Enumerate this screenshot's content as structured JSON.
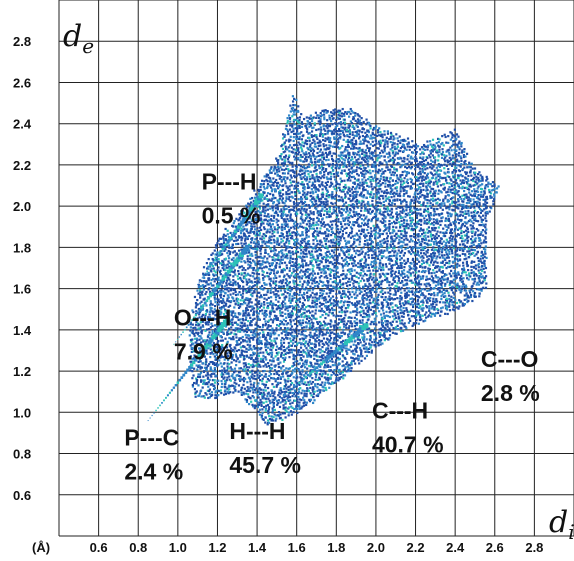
{
  "chart_data": {
    "type": "scatter",
    "title": "",
    "xlabel": "d_i",
    "ylabel": "d_e",
    "unit_label": "(Å)",
    "xlim": [
      0.4,
      3.0
    ],
    "ylim": [
      0.4,
      3.0
    ],
    "grid": true,
    "x_ticks": [
      "0.6",
      "0.8",
      "1.0",
      "1.2",
      "1.4",
      "1.6",
      "1.8",
      "2.0",
      "2.2",
      "2.4",
      "2.6",
      "2.8"
    ],
    "y_ticks": [
      "2.8",
      "2.6",
      "2.4",
      "2.2",
      "2.0",
      "1.8",
      "1.6",
      "1.4",
      "1.2",
      "1.0",
      "0.8",
      "0.6"
    ],
    "point_colors": {
      "low": "#1f4fa8",
      "mid": "#2f86c9",
      "high": "#2cc3b8"
    },
    "fingerprint_outline": [
      [
        1.08,
        1.08
      ],
      [
        1.05,
        1.25
      ],
      [
        1.06,
        1.45
      ],
      [
        1.1,
        1.65
      ],
      [
        1.2,
        1.85
      ],
      [
        1.35,
        2.03
      ],
      [
        1.5,
        2.25
      ],
      [
        1.58,
        2.57
      ],
      [
        1.62,
        2.42
      ],
      [
        1.72,
        2.48
      ],
      [
        1.88,
        2.48
      ],
      [
        1.98,
        2.4
      ],
      [
        2.08,
        2.36
      ],
      [
        2.22,
        2.3
      ],
      [
        2.4,
        2.38
      ],
      [
        2.48,
        2.2
      ],
      [
        2.62,
        2.1
      ],
      [
        2.55,
        1.92
      ],
      [
        2.55,
        1.6
      ],
      [
        2.45,
        1.52
      ],
      [
        2.25,
        1.45
      ],
      [
        2.12,
        1.4
      ],
      [
        1.95,
        1.28
      ],
      [
        1.8,
        1.15
      ],
      [
        1.6,
        1.0
      ],
      [
        1.45,
        0.94
      ],
      [
        1.3,
        1.1
      ],
      [
        1.2,
        1.08
      ]
    ],
    "spikes": [
      {
        "from": [
          0.85,
          0.96
        ],
        "to": [
          1.25,
          1.45
        ]
      },
      {
        "from": [
          0.98,
          1.33
        ],
        "to": [
          1.35,
          1.8
        ]
      },
      {
        "from": [
          1.1,
          1.62
        ],
        "to": [
          1.42,
          2.05
        ]
      },
      {
        "from": [
          1.5,
          1.05
        ],
        "to": [
          1.95,
          1.42
        ]
      }
    ],
    "annotations": [
      {
        "name": "P---H",
        "value": "0.5 %",
        "label_at": [
          1.12,
          2.08
        ]
      },
      {
        "name": "O---H",
        "value": "7.9 %",
        "label_at": [
          0.98,
          1.42
        ]
      },
      {
        "name": "P---C",
        "value": "2.4 %",
        "label_at": [
          0.73,
          0.84
        ]
      },
      {
        "name": "H---H",
        "value": "45.7 %",
        "label_at": [
          1.26,
          0.87
        ]
      },
      {
        "name": "C---H",
        "value": "40.7 %",
        "label_at": [
          1.98,
          0.97
        ]
      },
      {
        "name": "C---O",
        "value": "2.8 %",
        "label_at": [
          2.53,
          1.22
        ]
      }
    ]
  }
}
